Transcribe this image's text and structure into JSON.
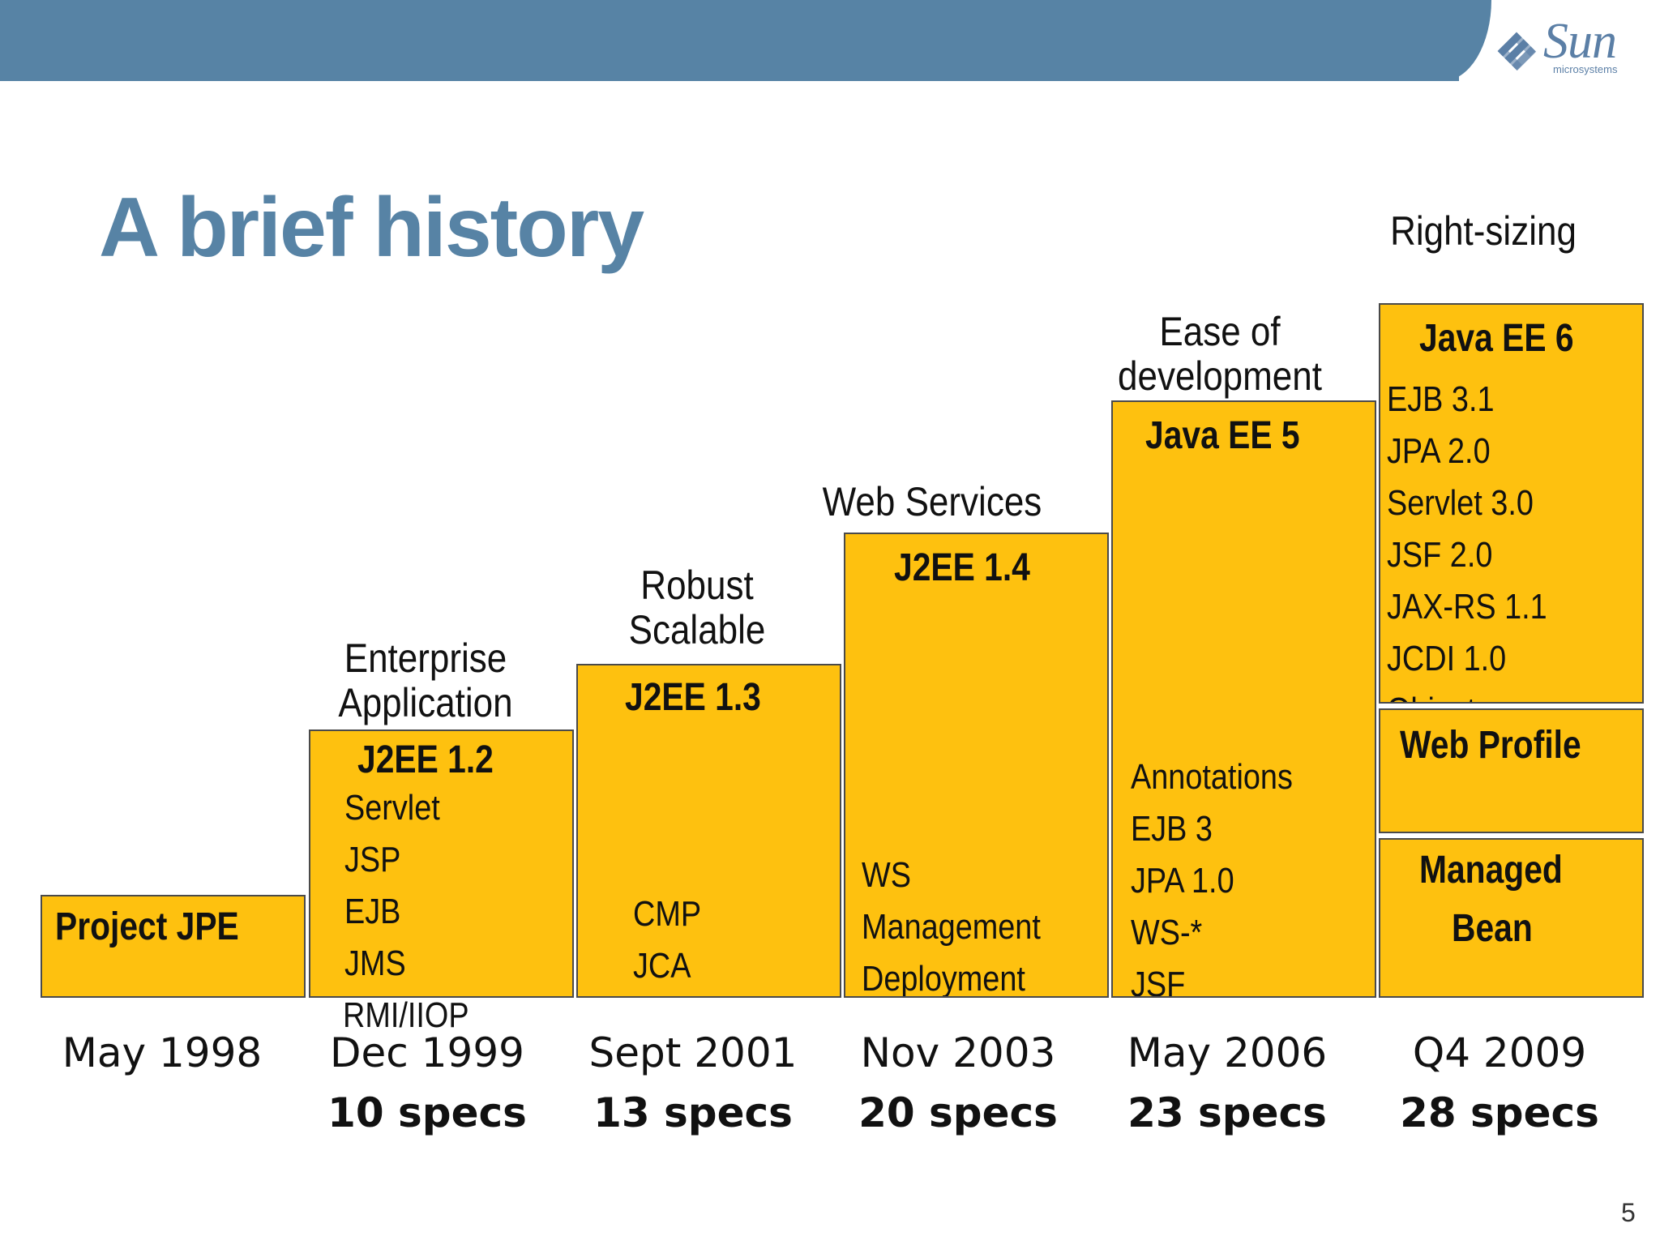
{
  "header": {
    "logo_text": "Sun",
    "logo_subtext": "microsystems"
  },
  "title": "A brief history",
  "captions": {
    "j2ee12": [
      "Enterprise",
      "Application"
    ],
    "j2ee13": [
      "Robust",
      "Scalable"
    ],
    "j2ee14": [
      "Web Services"
    ],
    "javaee5": [
      "Ease of",
      "development"
    ],
    "javaee6": [
      "Right-sizing"
    ]
  },
  "boxes": {
    "jpe": {
      "title": "Project JPE"
    },
    "j2ee12": {
      "title": "J2EE 1.2",
      "items": [
        "Servlet",
        "JSP",
        "EJB",
        "JMS",
        "RMI/IIOP"
      ]
    },
    "j2ee13": {
      "title": "J2EE 1.3",
      "items": [
        "CMP",
        "JCA"
      ]
    },
    "j2ee14": {
      "title": "J2EE 1.4",
      "items": [
        "WS",
        "Management",
        "Deployment"
      ]
    },
    "javaee5": {
      "title": "Java EE 5",
      "items": [
        "Annotations",
        "EJB 3",
        "JPA 1.0",
        "WS-*",
        "JSF"
      ]
    },
    "javaee6": {
      "title": "Java EE 6",
      "items": [
        "EJB 3.1",
        "JPA 2.0",
        "Servlet 3.0",
        "JSF 2.0",
        "JAX-RS 1.1",
        "JCDI 1.0",
        "Object"
      ]
    },
    "web_profile": {
      "title": "Web Profile"
    },
    "managed_bean": {
      "title": [
        "Managed",
        "Bean"
      ]
    }
  },
  "timeline": [
    {
      "date": "May 1998",
      "specs": ""
    },
    {
      "date": "Dec 1999",
      "specs": "10 specs"
    },
    {
      "date": "Sept 2001",
      "specs": "13 specs"
    },
    {
      "date": "Nov 2003",
      "specs": "20 specs"
    },
    {
      "date": "May 2006",
      "specs": "23 specs"
    },
    {
      "date": "Q4 2009",
      "specs": "28 specs"
    }
  ],
  "page_number": "5",
  "colors": {
    "header": "#5783a5",
    "box": "#fec10f",
    "title": "#5783a5"
  }
}
